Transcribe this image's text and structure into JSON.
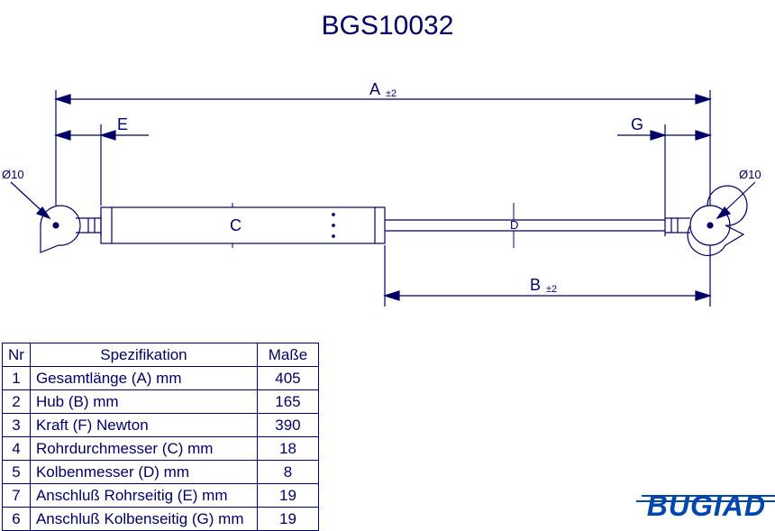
{
  "title": "BGS10032",
  "brand": "BUGIAD",
  "drawing": {
    "stroke": "#000066",
    "background": "#ffffff",
    "labels": {
      "A": "A",
      "A_tol": "±2",
      "B": "B",
      "B_tol": "±2",
      "C": "C",
      "D": "D",
      "E": "E",
      "G": "G",
      "diam_left": "Ø10",
      "diam_right": "Ø10"
    }
  },
  "table": {
    "headers": {
      "nr": "Nr",
      "spec": "Spezifikation",
      "val": "Maße"
    },
    "rows": [
      {
        "nr": "1",
        "spec": "Gesamtlänge (A) mm",
        "val": "405"
      },
      {
        "nr": "2",
        "spec": "Hub (B)  mm",
        "val": "165"
      },
      {
        "nr": "3",
        "spec": "Kraft (F) Newton",
        "val": "390"
      },
      {
        "nr": "4",
        "spec": "Rohrdurchmesser (C) mm",
        "val": "18"
      },
      {
        "nr": "5",
        "spec": "Kolbenmesser (D) mm",
        "val": "8"
      },
      {
        "nr": "7",
        "spec": "Anschluß Rohrseitig (E) mm",
        "val": "19"
      },
      {
        "nr": "6",
        "spec": "Anschluß Kolbenseitig (G) mm",
        "val": "19"
      }
    ]
  }
}
